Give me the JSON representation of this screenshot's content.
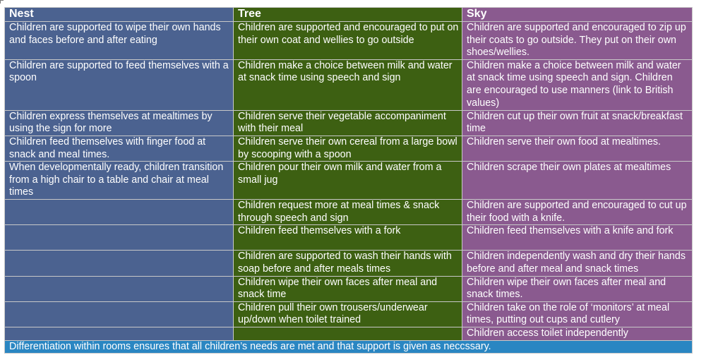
{
  "headers": {
    "nest": "Nest",
    "tree": "Tree",
    "sky": "Sky"
  },
  "rows": [
    {
      "nest": "Children are supported to wipe their own hands and faces before and after eating",
      "tree": "Children are supported and encouraged to put on their own coat and wellies to go outside",
      "sky": "Children are supported and encouraged to zip up their coats to go outside. They put on their own shoes/wellies."
    },
    {
      "nest": "Children are supported to feed themselves with a spoon",
      "tree": "Children make a choice between milk and water at snack time using speech and sign",
      "sky": "Children make a choice between milk and water at snack time using speech and sign. Children are encouraged to use manners (link to British values)"
    },
    {
      "nest": "Children express themselves at mealtimes by using the sign for more",
      "tree": "Children serve their vegetable accompaniment with their meal",
      "sky": "Children cut up their own fruit at snack/breakfast time"
    },
    {
      "nest": "Children feed themselves with finger food at snack and meal times.",
      "tree": "Children serve their own cereal from a large bowl by scooping with a spoon",
      "sky": "Children serve their own food at mealtimes."
    },
    {
      "nest": "When developmentally ready, children transition from a high chair to a table and chair at meal times",
      "tree": "Children pour their own milk and water from a small jug",
      "sky": "Children scrape their own plates at mealtimes"
    },
    {
      "nest": "",
      "tree": "Children request more at meal times & snack through speech and sign",
      "sky": "Children are supported and encouraged to cut up their food with a knife."
    },
    {
      "nest": "",
      "tree": "Children feed themselves with a fork",
      "sky": "Children feed themselves with a knife and fork"
    },
    {
      "nest": "",
      "tree": "Children are supported to wash their hands with soap before and after meals times",
      "sky": "Children independently wash and dry their hands before and after meal and snack times"
    },
    {
      "nest": "",
      "tree": "Children wipe their own faces after meal and snack time",
      "sky": "Children wipe their own faces after meal and snack times."
    },
    {
      "nest": "",
      "tree": "Children pull their own trousers/underwear up/down when toilet trained",
      "sky": "Children take on the role of ‘monitors’ at meal times, putting out cups and cutlery"
    },
    {
      "nest": "",
      "tree": "",
      "sky": "Children access toilet independently"
    }
  ],
  "footer": "Differentiation within rooms ensures that all children’s needs are met and that support is given as neccssary."
}
